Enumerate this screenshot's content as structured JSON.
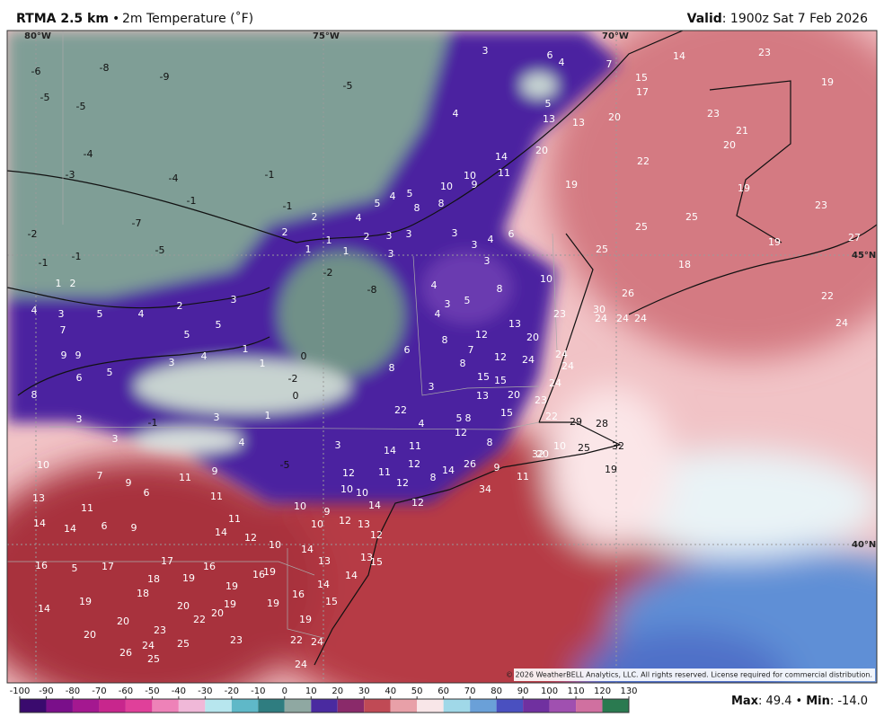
{
  "header": {
    "title": "RTMA 2.5 km",
    "separator": "•",
    "field": "2m Temperature (˚F)",
    "valid_label": "Valid",
    "valid_time": ": 1900z Sat 7 Feb 2026"
  },
  "map": {
    "longitude_labels": [
      "80°W",
      "75°W",
      "70°W"
    ],
    "latitude_labels": [
      "45°N",
      "40°N"
    ],
    "copyright": "© 2026 WeatherBELL Analytics, LLC. All rights reserved. License required for commercial distribution.",
    "station_values": [
      -6,
      -8,
      -9,
      -5,
      -5,
      -5,
      -4,
      -3,
      -4,
      -1,
      -1,
      -7,
      -5,
      -2,
      -1,
      -1,
      1,
      2,
      4,
      3,
      5,
      4,
      2,
      3,
      5,
      5,
      7,
      9,
      9,
      5,
      6,
      8,
      3,
      4,
      1,
      1,
      0,
      -2,
      0,
      3,
      -1,
      3,
      1,
      3,
      4,
      -5,
      3,
      10,
      7,
      9,
      11,
      9,
      6,
      11,
      13,
      11,
      6,
      9,
      14,
      14,
      11,
      14,
      12,
      10,
      10,
      9,
      10,
      12,
      13,
      14,
      12,
      16,
      5,
      17,
      17,
      16,
      18,
      19,
      16,
      19,
      13,
      13,
      15,
      14,
      14,
      19,
      18,
      19,
      16,
      15,
      19,
      19,
      14,
      20,
      20,
      22,
      20,
      19,
      23,
      20,
      24,
      25,
      23,
      22,
      26,
      25,
      24,
      24,
      3,
      6,
      4,
      7,
      15,
      17,
      4,
      5,
      13,
      13,
      20,
      14,
      11,
      10,
      10,
      9,
      20,
      19,
      5,
      4,
      5,
      4,
      8,
      8,
      2,
      2,
      -1,
      1,
      1,
      1,
      2,
      3,
      3,
      3,
      4,
      6,
      3,
      -2,
      3,
      3,
      -8,
      4,
      8,
      10,
      3,
      5,
      4,
      6,
      8,
      7,
      12,
      13,
      20,
      23,
      8,
      12,
      8,
      3,
      15,
      15,
      24,
      24,
      24,
      24,
      13,
      20,
      23,
      15,
      22,
      22,
      4,
      5,
      8,
      12,
      8,
      14,
      11,
      10,
      25,
      29,
      28,
      32,
      32,
      20,
      26,
      9,
      14,
      12,
      8,
      11,
      12,
      12,
      10,
      10,
      11,
      19,
      34,
      12,
      14,
      14,
      23,
      19,
      23,
      21,
      20,
      22,
      19,
      23,
      25,
      25,
      19,
      27,
      25,
      18,
      26,
      22,
      30,
      24,
      24,
      24,
      24,
      29
    ]
  },
  "legend": {
    "range": [
      -100,
      130
    ],
    "ticks": [
      -100,
      -90,
      -80,
      -70,
      -60,
      -50,
      -40,
      -30,
      -20,
      -10,
      0,
      10,
      20,
      30,
      40,
      50,
      60,
      70,
      80,
      90,
      100,
      110,
      120,
      130
    ],
    "colors": [
      "#3a0a6e",
      "#7a0f8a",
      "#a41890",
      "#c8268d",
      "#e0409a",
      "#ee82b8",
      "#f0b8d8",
      "#b7e6ee",
      "#5fb8c8",
      "#2f7d80",
      "#8fa8a2",
      "#4a2aa0",
      "#8a2a6a",
      "#c04a55",
      "#e8a0a8",
      "#f8e6e8",
      "#a0d8e8",
      "#6aa0d8",
      "#4a50c0",
      "#7030a0",
      "#a050b0",
      "#d070a0",
      "#2a7a50"
    ],
    "max_label": "Max",
    "max_value": ": 49.4",
    "sep": "•",
    "min_label": "Min",
    "min_value": ": -14.0"
  }
}
